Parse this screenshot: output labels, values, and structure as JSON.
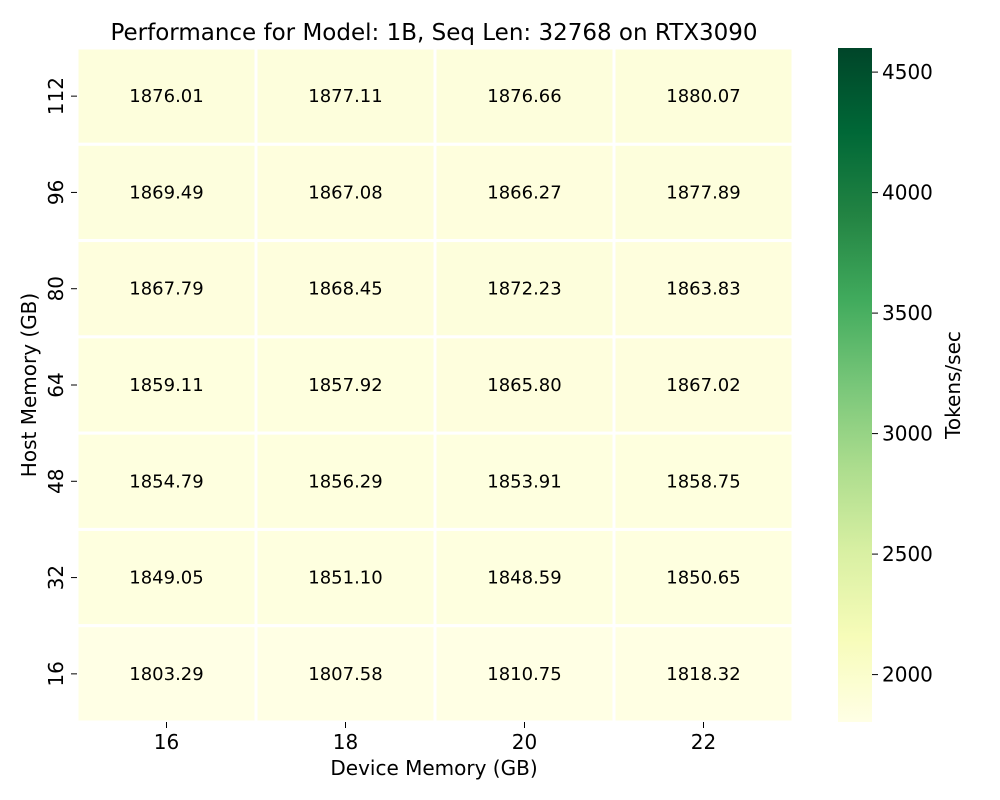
{
  "chart_data": {
    "type": "heatmap",
    "title": "Performance for Model: 1B, Seq Len: 32768 on RTX3090",
    "xlabel": "Device Memory (GB)",
    "ylabel": "Host Memory (GB)",
    "x_categories": [
      "16",
      "18",
      "20",
      "22"
    ],
    "y_categories": [
      "112",
      "96",
      "80",
      "64",
      "48",
      "32",
      "16"
    ],
    "values": [
      [
        1876.01,
        1877.11,
        1876.66,
        1880.07
      ],
      [
        1869.49,
        1867.08,
        1866.27,
        1877.89
      ],
      [
        1867.79,
        1868.45,
        1872.23,
        1863.83
      ],
      [
        1859.11,
        1857.92,
        1865.8,
        1867.02
      ],
      [
        1854.79,
        1856.29,
        1853.91,
        1858.75
      ],
      [
        1849.05,
        1851.1,
        1848.59,
        1850.65
      ],
      [
        1803.29,
        1807.58,
        1810.75,
        1818.32
      ]
    ],
    "cell_labels": [
      [
        "1876.01",
        "1877.11",
        "1876.66",
        "1880.07"
      ],
      [
        "1869.49",
        "1867.08",
        "1866.27",
        "1877.89"
      ],
      [
        "1867.79",
        "1868.45",
        "1872.23",
        "1863.83"
      ],
      [
        "1859.11",
        "1857.92",
        "1865.80",
        "1867.02"
      ],
      [
        "1854.79",
        "1856.29",
        "1853.91",
        "1858.75"
      ],
      [
        "1849.05",
        "1851.10",
        "1848.59",
        "1850.65"
      ],
      [
        "1803.29",
        "1807.58",
        "1810.75",
        "1818.32"
      ]
    ],
    "colorbar": {
      "label": "Tokens/sec",
      "range": [
        1803.29,
        4600
      ],
      "ticks": [
        2000,
        2500,
        3000,
        3500,
        4000,
        4500
      ],
      "tick_labels": [
        "2000",
        "2500",
        "3000",
        "3500",
        "4000",
        "4500"
      ],
      "colormap": "YlGn",
      "colors": [
        "#ffffe5",
        "#f7fcb9",
        "#d9f0a3",
        "#addd8e",
        "#78c679",
        "#41ab5d",
        "#238443",
        "#006837",
        "#004529"
      ]
    },
    "grid": false,
    "legend": "colorbar-right"
  }
}
